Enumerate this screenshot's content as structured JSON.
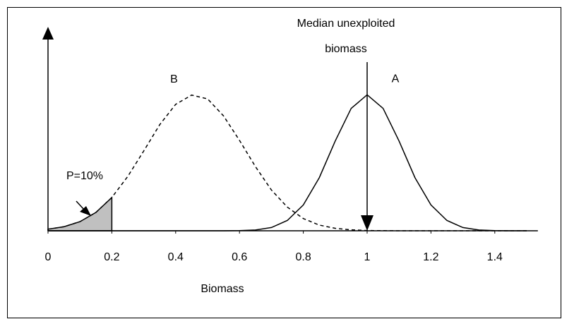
{
  "chart_data": {
    "type": "line",
    "xlabel": "Biomass",
    "x": [
      0,
      0.05,
      0.1,
      0.15,
      0.2,
      0.25,
      0.3,
      0.35,
      0.4,
      0.45,
      0.5,
      0.55,
      0.6,
      0.65,
      0.7,
      0.75,
      0.8,
      0.85,
      0.9,
      0.95,
      1,
      1.05,
      1.1,
      1.15,
      1.2,
      1.25,
      1.3,
      1.35,
      1.4,
      1.45,
      1.5
    ],
    "series": [
      {
        "name": "A",
        "color": "#000000",
        "dash": "solid",
        "values": [
          0,
          0,
          0,
          0,
          0,
          0,
          0,
          0,
          0,
          0,
          0,
          0.0002,
          0.001,
          0.006,
          0.024,
          0.076,
          0.19,
          0.39,
          0.66,
          0.9,
          1,
          0.9,
          0.66,
          0.39,
          0.19,
          0.076,
          0.024,
          0.006,
          0.001,
          0.0002,
          0
        ]
      },
      {
        "name": "B",
        "color": "#000000",
        "dash": "dashed",
        "values": [
          0.012,
          0.03,
          0.067,
          0.135,
          0.245,
          0.4,
          0.587,
          0.78,
          0.93,
          0.998,
          0.97,
          0.845,
          0.665,
          0.472,
          0.3,
          0.174,
          0.09,
          0.042,
          0.018,
          0.007,
          0.002,
          0.001,
          0,
          0,
          0,
          0,
          0,
          0,
          0,
          0,
          0
        ]
      }
    ],
    "xlim": [
      0,
      1.535
    ],
    "xticks": [
      0,
      0.2,
      0.4,
      0.6,
      0.8,
      1,
      1.2,
      1.4
    ],
    "ylim": [
      0,
      1.5
    ],
    "median_marker": {
      "lines": [
        "Median unexploited",
        "biomass"
      ],
      "x": 1
    },
    "shaded_tail": {
      "label": "P=10%",
      "series": 1,
      "x_max": 0.2
    }
  }
}
